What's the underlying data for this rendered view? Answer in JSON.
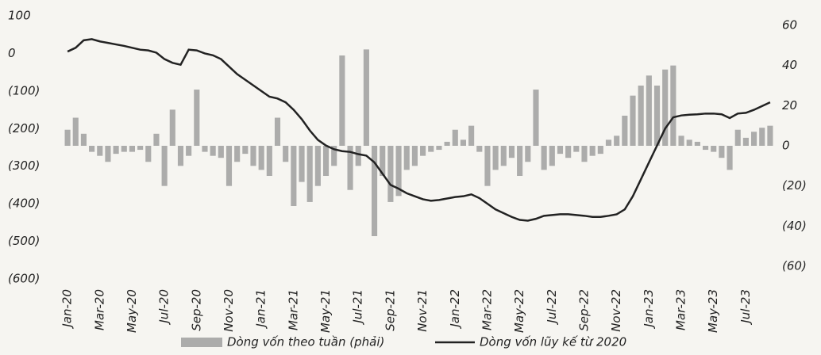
{
  "chart_data": {
    "type": "bar-line",
    "categories": [
      "Jan-20",
      null,
      null,
      null,
      "Mar-20",
      null,
      null,
      null,
      "May-20",
      null,
      null,
      null,
      "Jul-20",
      null,
      null,
      null,
      "Sep-20",
      null,
      null,
      null,
      "Nov-20",
      null,
      null,
      null,
      "Jan-21",
      null,
      null,
      null,
      "Mar-21",
      null,
      null,
      null,
      "May-21",
      null,
      null,
      null,
      "Jul-21",
      null,
      null,
      null,
      "Sep-21",
      null,
      null,
      null,
      "Nov-21",
      null,
      null,
      null,
      "Jan-22",
      null,
      null,
      null,
      "Mar-22",
      null,
      null,
      null,
      "May-22",
      null,
      null,
      null,
      "Jul-22",
      null,
      null,
      null,
      "Sep-22",
      null,
      null,
      null,
      "Nov-22",
      null,
      null,
      null,
      "Jan-23",
      null,
      null,
      null,
      "Mar-23",
      null,
      null,
      null,
      "May-23",
      null,
      null,
      null,
      "Jul-23",
      null,
      null,
      null
    ],
    "series": [
      {
        "name": "Dòng vốn theo tuần (phải)",
        "color": "#9a9a9a",
        "axis": "y2",
        "kind": "bar",
        "values": [
          8,
          14,
          6,
          -3,
          -5,
          -8,
          -4,
          -3,
          -3,
          -2,
          -8,
          6,
          -20,
          18,
          -10,
          -5,
          28,
          -3,
          -5,
          -6,
          -20,
          -8,
          -4,
          -10,
          -12,
          -15,
          14,
          -8,
          -30,
          -18,
          -28,
          -20,
          -15,
          -10,
          45,
          -22,
          -10,
          48,
          -45,
          -15,
          -28,
          -25,
          -12,
          -10,
          -5,
          -3,
          -2,
          2,
          8,
          3,
          10,
          -3,
          -20,
          -12,
          -10,
          -6,
          -15,
          -8,
          28,
          -12,
          -10,
          -4,
          -6,
          -3,
          -8,
          -5,
          -4,
          3,
          5,
          15,
          25,
          30,
          35,
          30,
          38,
          40,
          5,
          3,
          2,
          -2,
          -3,
          -6,
          -12,
          8,
          4,
          7,
          9,
          10
        ]
      },
      {
        "name": "Dòng vốn lũy kế từ 2020",
        "color": "#222222",
        "kind": "line",
        "values": [
          5,
          15,
          35,
          38,
          32,
          28,
          24,
          20,
          15,
          10,
          8,
          2,
          -15,
          -25,
          -30,
          10,
          8,
          0,
          -5,
          -15,
          -35,
          -55,
          -70,
          -85,
          -100,
          -115,
          -120,
          -130,
          -150,
          -175,
          -205,
          -230,
          -245,
          -255,
          -260,
          -262,
          -268,
          -272,
          -290,
          -320,
          -350,
          -360,
          -372,
          -380,
          -388,
          -392,
          -390,
          -386,
          -382,
          -380,
          -375,
          -385,
          -400,
          -415,
          -425,
          -435,
          -443,
          -445,
          -440,
          -432,
          -430,
          -428,
          -428,
          -430,
          -432,
          -435,
          -435,
          -432,
          -428,
          -415,
          -380,
          -335,
          -290,
          -245,
          -200,
          -170,
          -165,
          -163,
          -162,
          -160,
          -160,
          -162,
          -172,
          -160,
          -158,
          -150,
          -140,
          -130
        ]
      }
    ],
    "ylim": [
      -600,
      100
    ],
    "yticks": [
      {
        "value": -600,
        "label": "(600)"
      },
      {
        "value": -500,
        "label": "(500)"
      },
      {
        "value": -400,
        "label": "(400)"
      },
      {
        "value": -300,
        "label": "(300)"
      },
      {
        "value": -200,
        "label": "(200)"
      },
      {
        "value": -100,
        "label": "(100)"
      },
      0,
      100
    ],
    "y2lim": [
      -60,
      60
    ],
    "y2ticks": [
      {
        "value": -60,
        "label": "(60)"
      },
      {
        "value": -40,
        "label": "(40)"
      },
      {
        "value": -20,
        "label": "(20)"
      },
      0,
      20,
      40,
      60
    ],
    "grid": false,
    "legend": "bottom"
  }
}
